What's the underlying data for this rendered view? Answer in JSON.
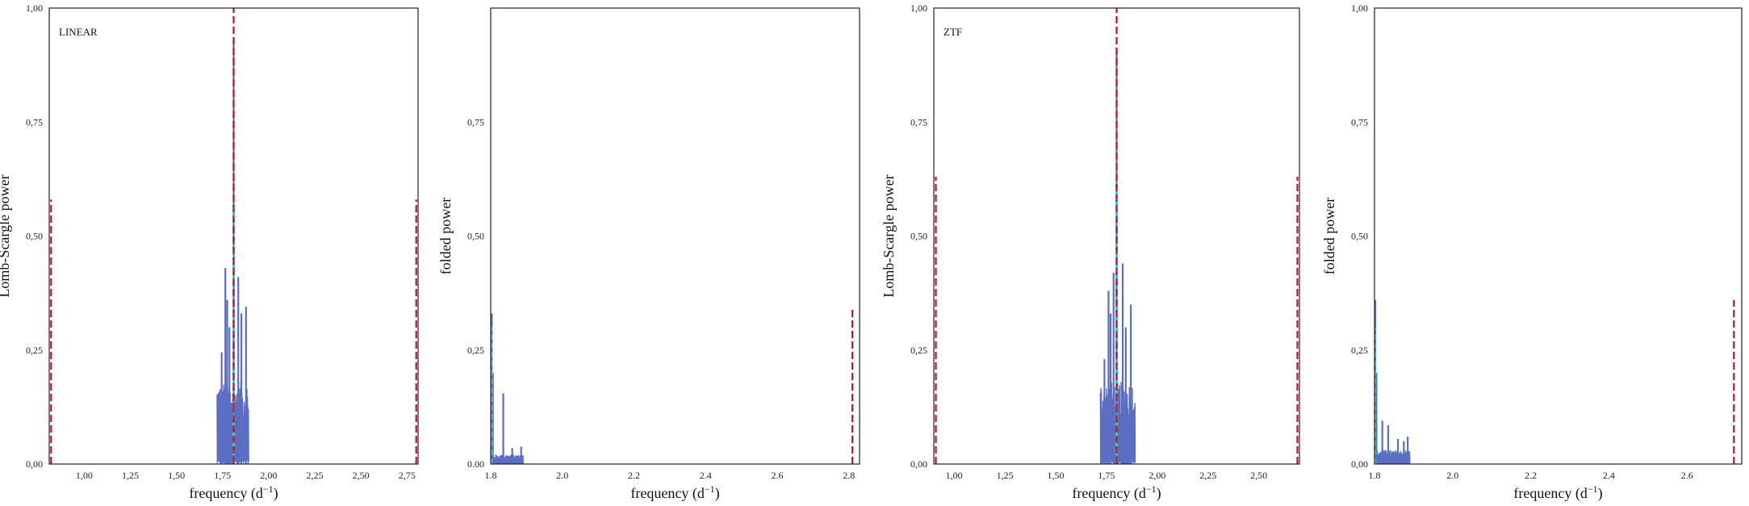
{
  "colors": {
    "signal": "#5b6ec4",
    "marker": "#b2182b",
    "highlight": "#4fc3d6",
    "frame": "#222222"
  },
  "chart_data": [
    {
      "type": "line",
      "annotation": "LINEAR",
      "xlabel_text": "frequency (d",
      "xlabel_sup": "−1",
      "xlabel_close": ")",
      "ylabel": "Lomb-Scargle power",
      "xlim": [
        0.81,
        2.81
      ],
      "ylim": [
        0,
        1
      ],
      "xticks": [
        1.0,
        1.25,
        1.5,
        1.75,
        2.0,
        2.25,
        2.5,
        2.75
      ],
      "xtick_labels": [
        "1,00",
        "1,25",
        "1,50",
        "1,75",
        "2,00",
        "2,25",
        "2,50",
        "2,75"
      ],
      "yticks": [
        0,
        0.25,
        0.5,
        0.75,
        1.0
      ],
      "ytick_labels": [
        "0,00",
        "0,25",
        "0,50",
        "0,75",
        "1,00"
      ],
      "band": {
        "x": [
          1.72,
          1.89
        ],
        "typical_max": 0.18
      },
      "peaks": [
        {
          "x": 1.745,
          "y": 0.245
        },
        {
          "x": 1.765,
          "y": 0.43
        },
        {
          "x": 1.775,
          "y": 0.36
        },
        {
          "x": 1.787,
          "y": 0.3
        },
        {
          "x": 1.81,
          "y": 0.93
        },
        {
          "x": 1.835,
          "y": 0.41
        },
        {
          "x": 1.852,
          "y": 0.33
        },
        {
          "x": 1.877,
          "y": 0.345
        }
      ],
      "highlight": {
        "x": 1.81,
        "y_range": [
          0.0,
          0.57
        ]
      },
      "markers": [
        {
          "x": 1.81,
          "y_range": [
            0,
            1.0
          ]
        },
        {
          "x": 0.82,
          "y_range": [
            0,
            0.58
          ]
        },
        {
          "x": 2.8,
          "y_range": [
            0,
            0.58
          ]
        }
      ]
    },
    {
      "type": "line",
      "annotation": "",
      "xlabel_text": "frequency (d",
      "xlabel_sup": "−1",
      "xlabel_close": ")",
      "ylabel": "folded power",
      "xlim": [
        1.8,
        2.83
      ],
      "ylim": [
        0,
        1
      ],
      "xticks": [
        1.8,
        2.0,
        2.2,
        2.4,
        2.6,
        2.8
      ],
      "xtick_labels": [
        "1.8",
        "2.0",
        "2.2",
        "2.4",
        "2.6",
        "2.8"
      ],
      "yticks": [
        0,
        0.25,
        0.5,
        0.75
      ],
      "ytick_labels": [
        "0.00",
        "0,25",
        "0,50",
        "0,75"
      ],
      "band": {
        "x": [
          1.8,
          1.89
        ],
        "typical_max": 0.02
      },
      "peaks": [
        {
          "x": 1.803,
          "y": 0.33
        },
        {
          "x": 1.806,
          "y": 0.2
        },
        {
          "x": 1.835,
          "y": 0.155
        },
        {
          "x": 1.86,
          "y": 0.035
        },
        {
          "x": 1.885,
          "y": 0.038
        }
      ],
      "highlight": {
        "x": 1.802,
        "y_range": [
          0.0,
          0.3
        ]
      },
      "markers": [
        {
          "x": 2.81,
          "y_range": [
            0,
            0.34
          ]
        }
      ]
    },
    {
      "type": "line",
      "annotation": "ZTF",
      "xlabel_text": "frequency (d",
      "xlabel_sup": "−1",
      "xlabel_close": ")",
      "ylabel": "Lomb-Scargle power",
      "xlim": [
        0.9,
        2.7
      ],
      "ylim": [
        0,
        1
      ],
      "xticks": [
        1.0,
        1.25,
        1.5,
        1.75,
        2.0,
        2.25,
        2.5
      ],
      "xtick_labels": [
        "1,00",
        "1,25",
        "1,50",
        "1,75",
        "2,00",
        "2,25",
        "2,50"
      ],
      "yticks": [
        0,
        0.25,
        0.5,
        0.75,
        1.0
      ],
      "ytick_labels": [
        "0,00",
        "0,25",
        "0,50",
        "0,75",
        "1,00"
      ],
      "band": {
        "x": [
          1.72,
          1.89
        ],
        "typical_max": 0.18
      },
      "peaks": [
        {
          "x": 1.74,
          "y": 0.23
        },
        {
          "x": 1.76,
          "y": 0.38
        },
        {
          "x": 1.77,
          "y": 0.33
        },
        {
          "x": 1.785,
          "y": 0.42
        },
        {
          "x": 1.8,
          "y": 0.91
        },
        {
          "x": 1.83,
          "y": 0.44
        },
        {
          "x": 1.845,
          "y": 0.3
        },
        {
          "x": 1.87,
          "y": 0.35
        }
      ],
      "highlight": {
        "x": 1.8,
        "y_range": [
          0.0,
          0.62
        ]
      },
      "markers": [
        {
          "x": 1.8,
          "y_range": [
            0,
            1.0
          ]
        },
        {
          "x": 0.91,
          "y_range": [
            0,
            0.63
          ]
        },
        {
          "x": 2.69,
          "y_range": [
            0,
            0.63
          ]
        }
      ]
    },
    {
      "type": "line",
      "annotation": "",
      "xlabel_text": "frequency (d",
      "xlabel_sup": "−1",
      "xlabel_close": ")",
      "ylabel": "folded power",
      "xlim": [
        1.8,
        2.74
      ],
      "ylim": [
        0,
        1
      ],
      "xticks": [
        1.8,
        2.0,
        2.2,
        2.4,
        2.6
      ],
      "xtick_labels": [
        "1.8",
        "2.0",
        "2.2",
        "2.4",
        "2.6"
      ],
      "yticks": [
        0,
        0.25,
        0.5,
        0.75,
        1.0
      ],
      "ytick_labels": [
        "0,00",
        "0,25",
        "0,50",
        "0,75",
        "1,00"
      ],
      "band": {
        "x": [
          1.8,
          1.89
        ],
        "typical_max": 0.03
      },
      "peaks": [
        {
          "x": 1.802,
          "y": 0.36
        },
        {
          "x": 1.805,
          "y": 0.2
        },
        {
          "x": 1.82,
          "y": 0.095
        },
        {
          "x": 1.835,
          "y": 0.085
        },
        {
          "x": 1.86,
          "y": 0.055
        },
        {
          "x": 1.875,
          "y": 0.05
        },
        {
          "x": 1.885,
          "y": 0.06
        }
      ],
      "highlight": {
        "x": 1.801,
        "y_range": [
          0.0,
          0.3
        ]
      },
      "markers": [
        {
          "x": 2.72,
          "y_range": [
            0,
            0.36
          ]
        }
      ]
    }
  ]
}
